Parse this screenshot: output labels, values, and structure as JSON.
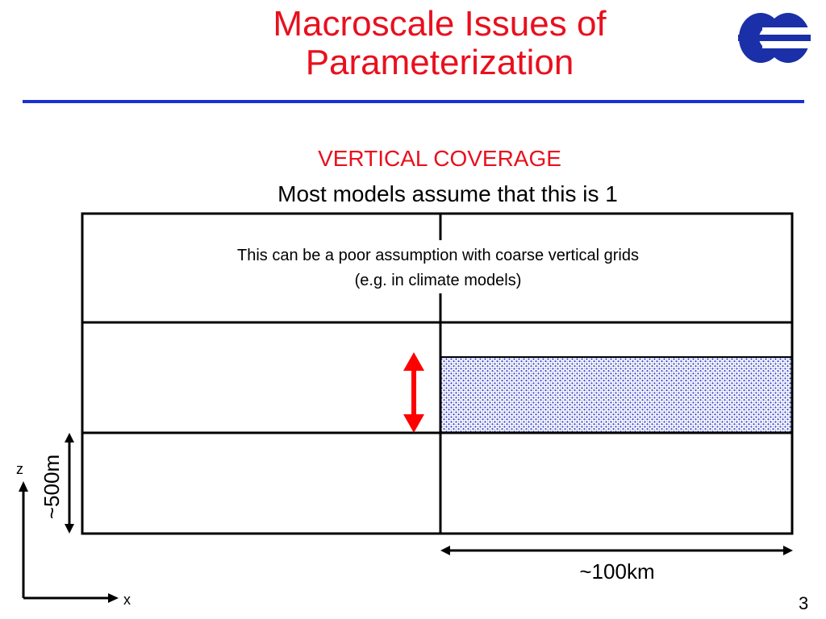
{
  "slide": {
    "title_line1": "Macroscale Issues of",
    "title_line2": "Parameterization",
    "subtitle": "VERTICAL COVERAGE",
    "assumption": "Most models assume that this is 1",
    "note_line1": "This can be a poor assumption with coarse vertical grids",
    "note_line2": "(e.g. in climate models)",
    "horizontal_scale": "~100km",
    "vertical_scale": "~500m",
    "axis_z": "z",
    "axis_x": "x",
    "page_number": "3"
  },
  "colors": {
    "title": "#e8101e",
    "rule": "#1a2fd6",
    "logo": "#1a2fa8",
    "arrow": "#ff0000",
    "cloud_fill": "#3341c4"
  },
  "grid": {
    "columns": 2,
    "layers": 3,
    "cloud_column": 2,
    "cloud_layer": 2,
    "cloud_vertical_fraction": 0.7
  }
}
